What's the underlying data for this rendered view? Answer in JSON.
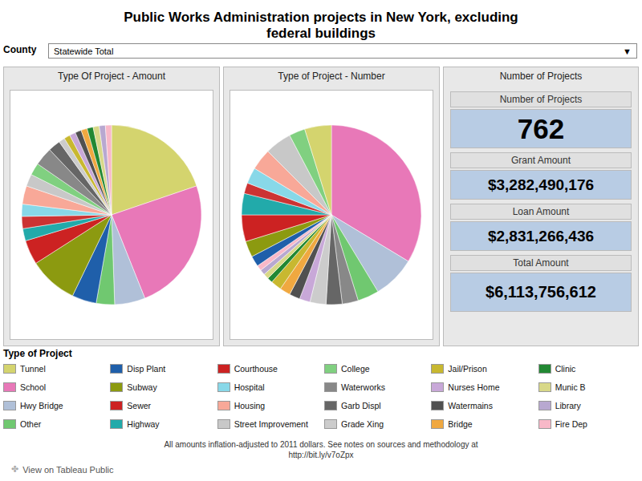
{
  "title": "Public Works Administration projects in New York, excluding\nfederal buildings",
  "annotations": [
    "County",
    "Statewide Total",
    "▼",
    "All amounts inflation-adjusted to 2011 dollars. See notes on sources and methodology at\nhttp://bit.ly/v7oZpx",
    "✤",
    "View on Tableau Public"
  ],
  "chart_data": [
    {
      "type": "pie",
      "title": "Type Of Project - Amount",
      "categories": [
        "Tunnel",
        "School",
        "Hwy Bridge",
        "Other",
        "Disp Plant",
        "Subway",
        "Sewer",
        "Highway",
        "Courthouse",
        "Hospital",
        "Housing",
        "Street Improvement",
        "College",
        "Waterworks",
        "Garb Displ",
        "Grade Xing",
        "Jail/Prison",
        "Nurses Home",
        "Watermains",
        "Bridge",
        "Clinic",
        "Munic B",
        "Library",
        "Fire Dep"
      ],
      "values": [
        18,
        22,
        5,
        3,
        4,
        8,
        4,
        2,
        2,
        2,
        3,
        2,
        2,
        3,
        2,
        1,
        1,
        1,
        1,
        1,
        1,
        1,
        1,
        1
      ],
      "colors": [
        "#d4d46e",
        "#e878b8",
        "#b0c0d8",
        "#70c870",
        "#1f5faa",
        "#8c9a10",
        "#cc2222",
        "#22aaaa",
        "#cc3333",
        "#88d8e8",
        "#f8a898",
        "#c8c8c8",
        "#80d080",
        "#888888",
        "#666666",
        "#cccccc",
        "#c8b830",
        "#c8a8d8",
        "#505050",
        "#f0a840",
        "#228833",
        "#d8d888",
        "#b8a8d0",
        "#f8b8c8"
      ]
    },
    {
      "type": "pie",
      "title": "Type of Project - Number",
      "categories": [
        "School",
        "Hwy Bridge",
        "Other",
        "Waterworks",
        "Garb Displ",
        "Grade Xing",
        "Nurses Home",
        "Watermains",
        "Bridge",
        "Jail/Prison",
        "Clinic",
        "Munic B",
        "Library",
        "Fire Dep",
        "Disp Plant",
        "Subway",
        "Sewer",
        "Highway",
        "Courthouse",
        "Hospital",
        "Housing",
        "Street Improvement",
        "College",
        "Tunnel"
      ],
      "values": [
        35,
        8,
        4,
        3,
        3,
        3,
        2,
        2,
        2,
        2,
        1,
        1,
        1,
        1,
        2,
        3,
        5,
        4,
        2,
        3,
        4,
        5,
        3,
        5
      ],
      "colors": [
        "#e878b8",
        "#b0c0d8",
        "#70c870",
        "#888888",
        "#666666",
        "#cccccc",
        "#c8a8d8",
        "#505050",
        "#f0a840",
        "#c8b830",
        "#228833",
        "#d8d888",
        "#b8a8d0",
        "#f8b8c8",
        "#1f5faa",
        "#8c9a10",
        "#cc2222",
        "#22aaaa",
        "#cc3333",
        "#88d8e8",
        "#f8a898",
        "#c8c8c8",
        "#80d080",
        "#d4d46e"
      ]
    },
    {
      "type": "table",
      "title": "Number of Projects",
      "categories": [
        "Number of Projects",
        "Grant Amount",
        "Loan Amount",
        "Total Amount"
      ],
      "values": [
        762,
        3282490176,
        2831266436,
        6113756612
      ],
      "value_labels": [
        "762",
        "$3,282,490,176",
        "$2,831,266,436",
        "$6,113,756,612"
      ],
      "color": "#b8cce4"
    },
    {
      "type": "legend",
      "title": "Type of Project",
      "categories": [
        "Tunnel",
        "Disp Plant",
        "Courthouse",
        "College",
        "Jail/Prison",
        "Clinic",
        "School",
        "Subway",
        "Hospital",
        "Waterworks",
        "Nurses Home",
        "Munic B",
        "Hwy Bridge",
        "Sewer",
        "Housing",
        "Garb Displ",
        "Watermains",
        "Library",
        "Other",
        "Highway",
        "Street Improvement",
        "Grade Xing",
        "Bridge",
        "Fire Dep"
      ],
      "colors": [
        "#d4d46e",
        "#1f5faa",
        "#cc2222",
        "#80d080",
        "#c8b830",
        "#228833",
        "#e878b8",
        "#8c9a10",
        "#88d8e8",
        "#888888",
        "#c8a8d8",
        "#d8d888",
        "#b0c0d8",
        "#cc2222",
        "#f8a898",
        "#666666",
        "#505050",
        "#b8a8d0",
        "#70c870",
        "#22aaaa",
        "#c8c8c8",
        "#cccccc",
        "#f0a840",
        "#f8b8c8"
      ]
    }
  ]
}
